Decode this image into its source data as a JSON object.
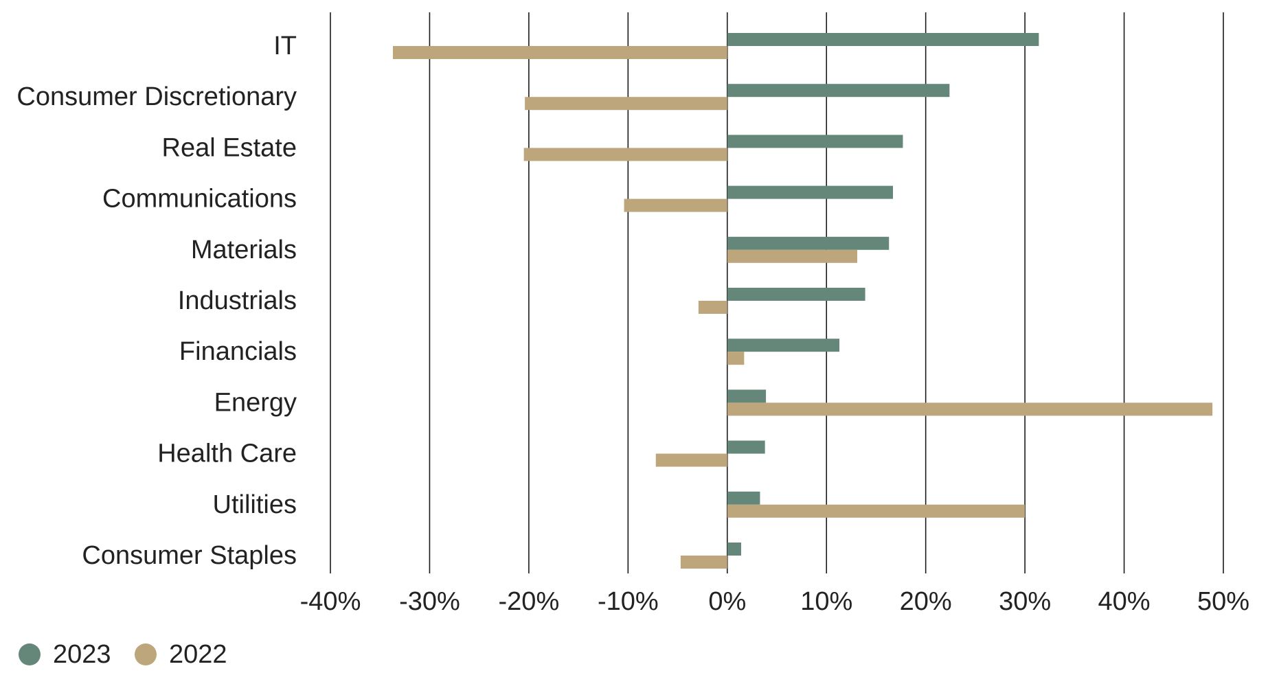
{
  "chart_data": {
    "type": "bar",
    "orientation": "horizontal",
    "title": "",
    "xlabel": "",
    "ylabel": "",
    "categories": [
      "IT",
      "Consumer Discretionary",
      "Real Estate",
      "Communications",
      "Materials",
      "Industrials",
      "Financials",
      "Energy",
      "Health Care",
      "Utilities",
      "Consumer Staples"
    ],
    "series": [
      {
        "name": "2023",
        "color": "#64877a",
        "values": [
          31.4,
          22.4,
          17.7,
          16.7,
          16.3,
          13.9,
          11.3,
          3.9,
          3.8,
          3.3,
          1.4
        ]
      },
      {
        "name": "2022",
        "color": "#bda57c",
        "values": [
          -33.7,
          -20.4,
          -20.5,
          -10.4,
          13.1,
          -2.9,
          1.7,
          48.9,
          -7.2,
          30.0,
          -4.7
        ]
      }
    ],
    "xlim": [
      -40,
      50
    ],
    "xticks": [
      -40,
      -30,
      -20,
      -10,
      0,
      10,
      20,
      30,
      40,
      50
    ],
    "xtick_labels": [
      "-40%",
      "-30%",
      "-20%",
      "-10%",
      "0%",
      "10%",
      "20%",
      "30%",
      "40%",
      "50%"
    ],
    "grid": "vertical",
    "legend": {
      "position": "bottom-left",
      "entries": [
        "2023",
        "2022"
      ]
    }
  }
}
